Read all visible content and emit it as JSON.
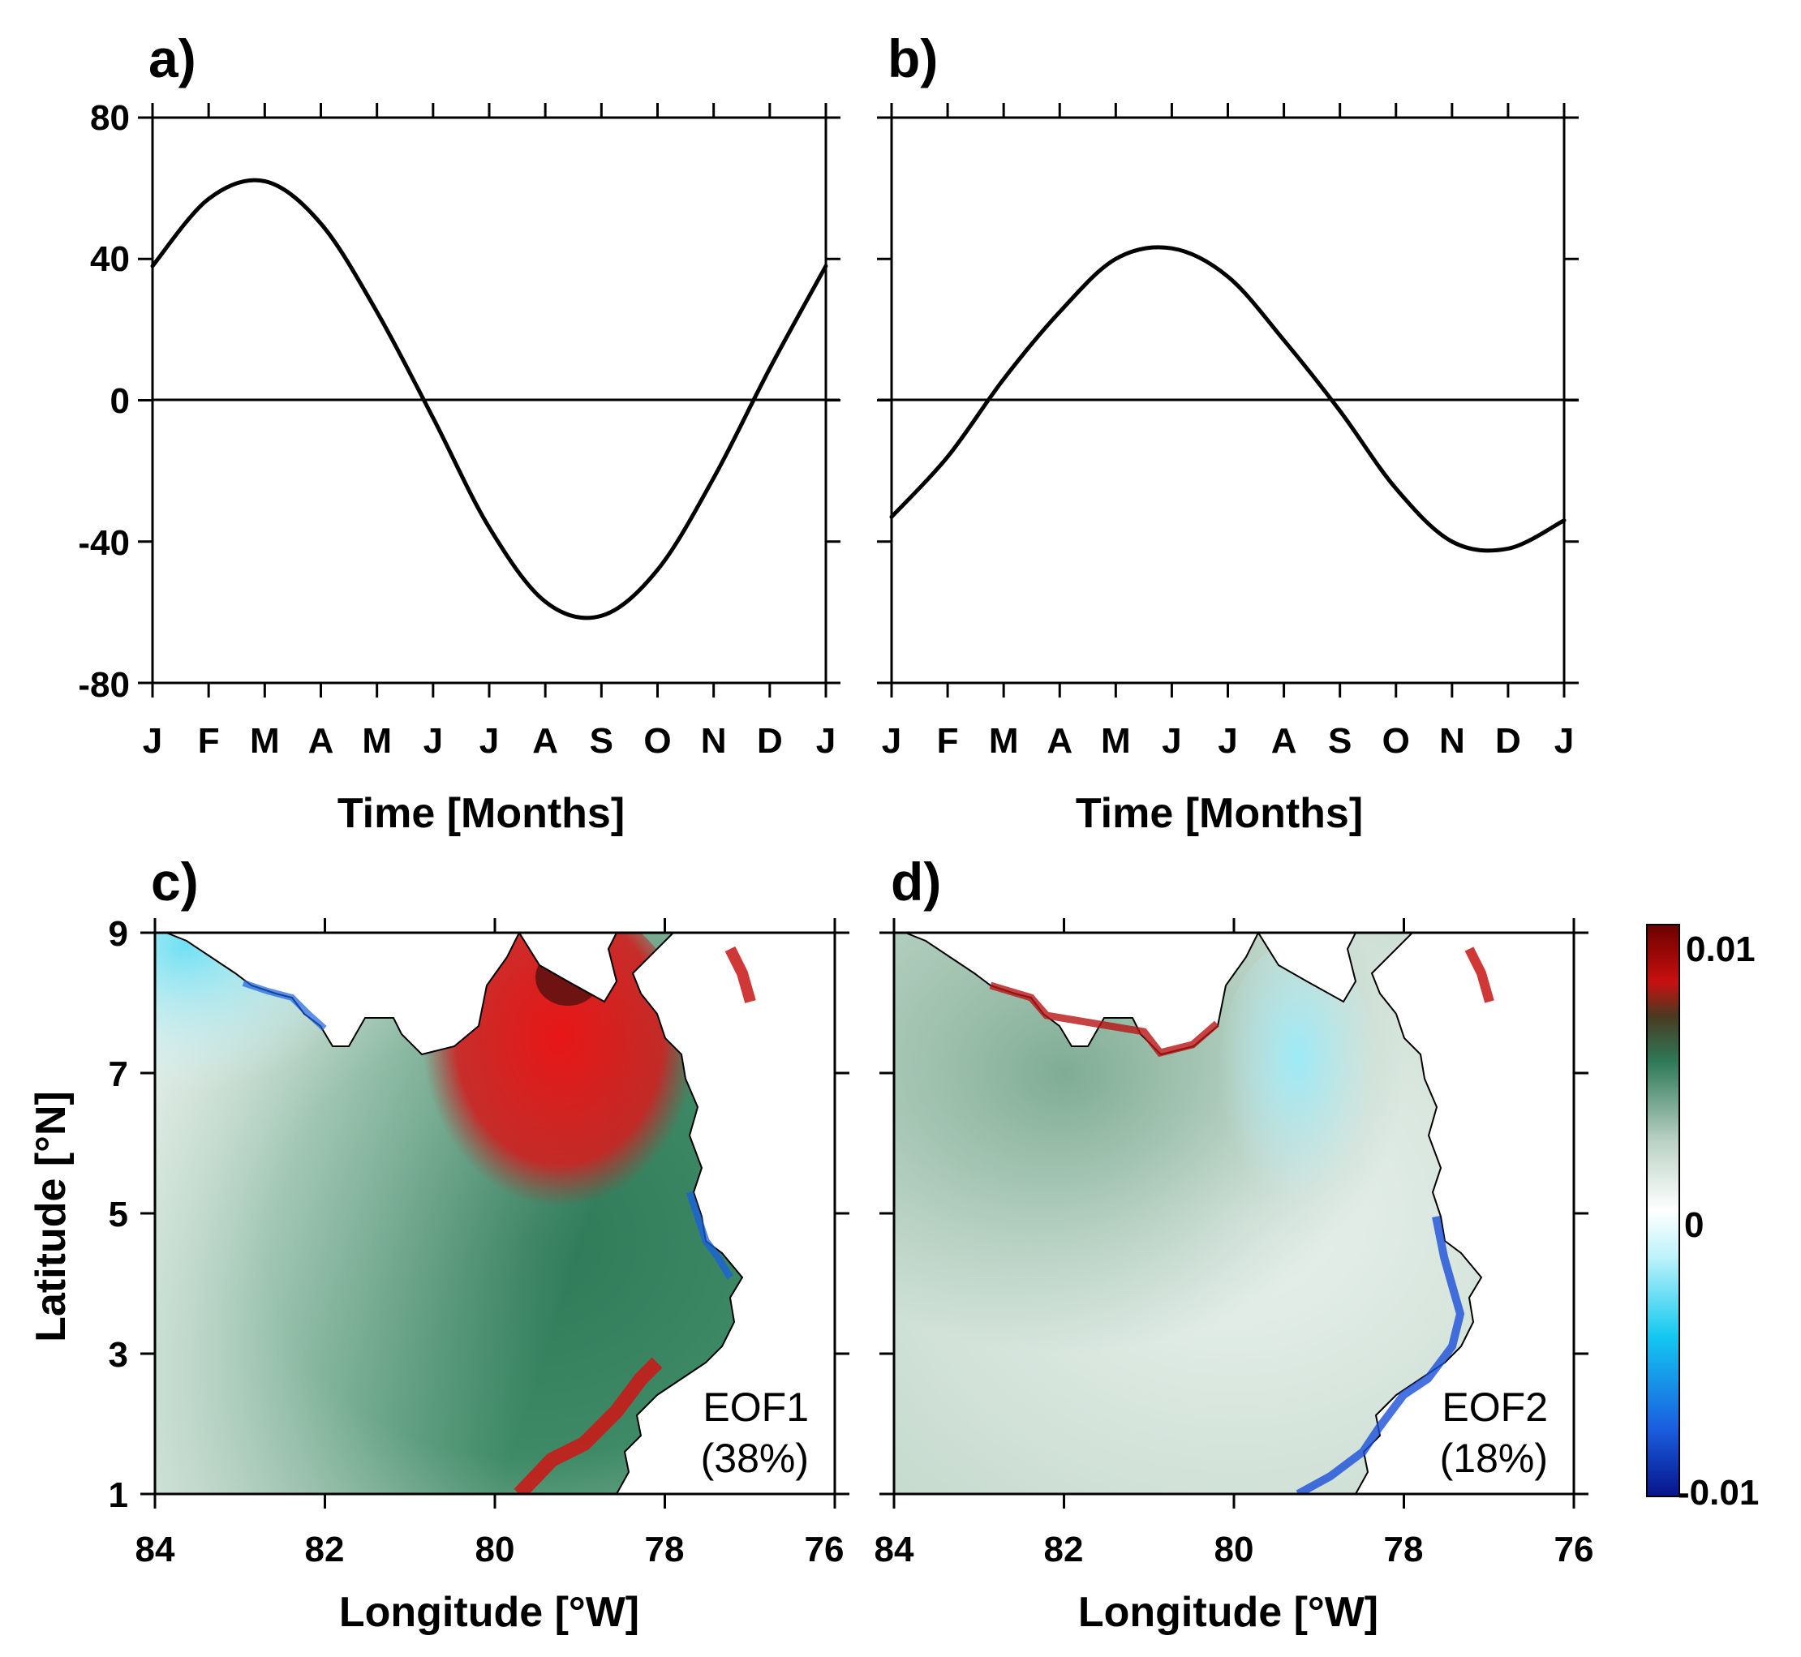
{
  "chart_data": [
    {
      "id": "a",
      "type": "line",
      "panel_label": "a)",
      "xlabel": "Time [Months]",
      "categories": [
        "J",
        "F",
        "M",
        "A",
        "M",
        "J",
        "J",
        "A",
        "S",
        "O",
        "N",
        "D",
        "J"
      ],
      "values": [
        38,
        57,
        62,
        50,
        25,
        -5,
        -36,
        -57,
        -61,
        -48,
        -22,
        9,
        38
      ],
      "ylim": [
        -80,
        80
      ],
      "yticks": [
        "80",
        "40",
        "0",
        "-40",
        "-80"
      ],
      "zero_line": true
    },
    {
      "id": "b",
      "type": "line",
      "panel_label": "b)",
      "xlabel": "Time [Months]",
      "categories": [
        "J",
        "F",
        "M",
        "A",
        "M",
        "J",
        "J",
        "A",
        "S",
        "O",
        "N",
        "D",
        "J"
      ],
      "values": [
        -33,
        -16,
        6,
        25,
        40,
        43,
        35,
        17,
        -3,
        -25,
        -40,
        -42,
        -34
      ],
      "ylim": [
        -80,
        80
      ],
      "zero_line": true
    },
    {
      "id": "c",
      "type": "heatmap",
      "panel_label": "c)",
      "xlabel": "Longitude [°W]",
      "ylabel": "Latitude [°N]",
      "xticks": [
        "84",
        "82",
        "80",
        "78",
        "76"
      ],
      "yticks": [
        "9",
        "7",
        "5",
        "3",
        "1"
      ],
      "xlim": [
        84,
        76
      ],
      "ylim": [
        1,
        9
      ],
      "annotation": {
        "line1": "EOF1",
        "line2": "(38%)"
      }
    },
    {
      "id": "d",
      "type": "heatmap",
      "panel_label": "d)",
      "xlabel": "Longitude [°W]",
      "xticks": [
        "84",
        "82",
        "80",
        "78",
        "76"
      ],
      "xlim": [
        84,
        76
      ],
      "ylim": [
        1,
        9
      ],
      "annotation": {
        "line1": "EOF2",
        "line2": "(18%)"
      }
    }
  ],
  "colorbar": {
    "max_label": "0.01",
    "mid_label": "0",
    "min_label": "-0.01",
    "range": [
      -0.01,
      0.01
    ],
    "colors": [
      "#08148c",
      "#1a5fe0",
      "#14c8f0",
      "#bff3fb",
      "#ffffff",
      "#bcd2c6",
      "#2e7a58",
      "#4a3a20",
      "#c81010",
      "#6a0000"
    ]
  },
  "map_colors": {
    "green": "#2e7a58",
    "light": "#e8f2ec",
    "red": "#e01414",
    "cyan": "#8fe8f6",
    "blue": "#1040d0"
  }
}
